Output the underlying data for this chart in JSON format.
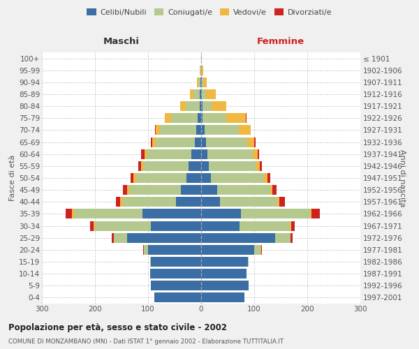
{
  "age_groups": [
    "0-4",
    "5-9",
    "10-14",
    "15-19",
    "20-24",
    "25-29",
    "30-34",
    "35-39",
    "40-44",
    "45-49",
    "50-54",
    "55-59",
    "60-64",
    "65-69",
    "70-74",
    "75-79",
    "80-84",
    "85-89",
    "90-94",
    "95-99",
    "100+"
  ],
  "birth_years": [
    "1997-2001",
    "1992-1996",
    "1987-1991",
    "1982-1986",
    "1977-1981",
    "1972-1976",
    "1967-1971",
    "1962-1966",
    "1957-1961",
    "1952-1956",
    "1947-1951",
    "1942-1946",
    "1937-1941",
    "1932-1936",
    "1927-1931",
    "1922-1926",
    "1917-1921",
    "1912-1916",
    "1907-1911",
    "1902-1906",
    "≤ 1901"
  ],
  "colors": {
    "celibi": "#3a6ea5",
    "coniugati": "#b5c98e",
    "vedovi": "#f0b840",
    "divorziati": "#cc2222"
  },
  "males": {
    "celibi": [
      88,
      95,
      96,
      95,
      100,
      140,
      95,
      110,
      48,
      38,
      28,
      24,
      18,
      12,
      9,
      6,
      3,
      2,
      1,
      0,
      0
    ],
    "coniugati": [
      0,
      0,
      0,
      1,
      8,
      24,
      105,
      130,
      100,
      98,
      95,
      85,
      85,
      74,
      68,
      50,
      26,
      12,
      4,
      1,
      0
    ],
    "vedovi": [
      0,
      0,
      0,
      0,
      0,
      1,
      3,
      3,
      4,
      4,
      4,
      4,
      4,
      6,
      8,
      12,
      10,
      7,
      3,
      1,
      0
    ],
    "divorziati": [
      0,
      0,
      0,
      0,
      1,
      3,
      6,
      12,
      8,
      8,
      6,
      6,
      6,
      3,
      2,
      1,
      0,
      0,
      0,
      0,
      0
    ]
  },
  "females": {
    "nubili": [
      82,
      90,
      86,
      88,
      100,
      140,
      72,
      75,
      36,
      30,
      18,
      14,
      12,
      9,
      6,
      3,
      2,
      1,
      1,
      0,
      0
    ],
    "coniugate": [
      0,
      0,
      0,
      1,
      12,
      28,
      95,
      130,
      108,
      100,
      100,
      90,
      85,
      78,
      65,
      45,
      18,
      8,
      3,
      1,
      0
    ],
    "vedove": [
      0,
      0,
      0,
      0,
      1,
      1,
      3,
      3,
      4,
      4,
      7,
      7,
      9,
      13,
      22,
      36,
      27,
      18,
      7,
      3,
      1
    ],
    "divorziate": [
      0,
      0,
      0,
      0,
      1,
      3,
      6,
      16,
      10,
      8,
      5,
      4,
      3,
      2,
      1,
      1,
      0,
      0,
      0,
      0,
      0
    ]
  },
  "title": "Popolazione per età, sesso e stato civile - 2002",
  "subtitle": "COMUNE DI MONZAMBANO (MN) - Dati ISTAT 1° gennaio 2002 - Elaborazione TUTTITALIA.IT",
  "xlabel_left": "Maschi",
  "xlabel_right": "Femmine",
  "ylabel_left": "Fasce di età",
  "ylabel_right": "Anni di nascita",
  "xlim": 300,
  "bg_color": "#f0f0f0",
  "plot_bg": "#ffffff",
  "legend_labels": [
    "Celibi/Nubili",
    "Coniugati/e",
    "Vedovi/e",
    "Divorziati/e"
  ]
}
